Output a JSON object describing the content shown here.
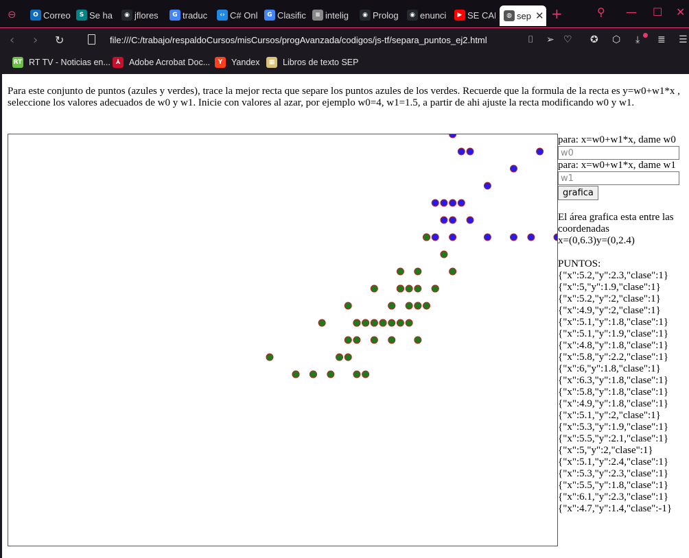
{
  "browser": {
    "tabs": [
      {
        "label": "Correo",
        "icon": "outlook-icon",
        "color": "#0f6cbd",
        "glyph": "O"
      },
      {
        "label": "Se ha",
        "icon": "sharepoint-icon",
        "color": "#038387",
        "glyph": "S"
      },
      {
        "label": "jflores",
        "icon": "github-icon",
        "color": "#24292e",
        "glyph": "◉"
      },
      {
        "label": "traduc",
        "icon": "google-icon",
        "color": "#4285f4",
        "glyph": "G"
      },
      {
        "label": "C# Onl",
        "icon": "dotnet-icon",
        "color": "#1e88e5",
        "glyph": "‹›"
      },
      {
        "label": "Clasific",
        "icon": "google-icon",
        "color": "#4285f4",
        "glyph": "G"
      },
      {
        "label": "intelig",
        "icon": "document-icon",
        "color": "#888888",
        "glyph": "≡"
      },
      {
        "label": "Prolog",
        "icon": "github-icon",
        "color": "#24292e",
        "glyph": "◉"
      },
      {
        "label": "enunci",
        "icon": "github-icon",
        "color": "#24292e",
        "glyph": "◉"
      },
      {
        "label": "SE CAE",
        "icon": "youtube-icon",
        "color": "#ff0000",
        "glyph": "▶"
      },
      {
        "label": "sep",
        "icon": "globe-icon",
        "color": "#555555",
        "glyph": "◍"
      }
    ],
    "url": "file:///C:/trabajo/respaldoCursos/misCursos/progAvanzada/codigos/js-tf/separa_puntos_ej2.html",
    "bookmarks": [
      {
        "label": "RT TV - Noticias en...",
        "icon": "rt-icon",
        "color": "#6cbe45",
        "glyph": "RT"
      },
      {
        "label": "Adobe Acrobat Doc...",
        "icon": "acrobat-icon",
        "color": "#c8102e",
        "glyph": "⅄"
      },
      {
        "label": "Yandex",
        "icon": "yandex-icon",
        "color": "#fc3f1d",
        "glyph": "Y"
      },
      {
        "label": "Libros de texto SEP",
        "icon": "book-icon",
        "color": "#d9c27a",
        "glyph": "▦"
      }
    ],
    "accent": "#e8376a"
  },
  "page": {
    "intro": "Para este conjunto de puntos (azules y verdes), trace la mejor recta que separe los puntos azules de los verdes. Recuerde que la formula de la recta es y=w0+w1*x , seleccione los valores adecuados de w0 y w1. Inicie con valores al azar, por ejemplo w0=4, w1=1.5, a partir de ahi ajuste la recta modificando w0 y w1.",
    "w0_label": "para: x=w0+w1*x, dame w0",
    "w0_placeholder": "w0",
    "w1_label": "para: x=w0+w1*x, dame w1",
    "w1_placeholder": "w1",
    "button": "grafica",
    "area_text": "El área grafica esta entre las coordenadas",
    "coords_text": "x=(0,6.3)y=(0,2.4)",
    "points_header": "PUNTOS:",
    "points_list": [
      "{\"x\":5.2,\"y\":2.3,\"clase\":1}",
      "{\"x\":5,\"y\":1.9,\"clase\":1}",
      "{\"x\":5.2,\"y\":2,\"clase\":1}",
      "{\"x\":4.9,\"y\":2,\"clase\":1}",
      "{\"x\":5.1,\"y\":1.8,\"clase\":1}",
      "{\"x\":5.1,\"y\":1.9,\"clase\":1}",
      "{\"x\":4.8,\"y\":1.8,\"clase\":1}",
      "{\"x\":5.8,\"y\":2.2,\"clase\":1}",
      "{\"x\":6,\"y\":1.8,\"clase\":1}",
      "{\"x\":6.3,\"y\":1.8,\"clase\":1}",
      "{\"x\":5.8,\"y\":1.8,\"clase\":1}",
      "{\"x\":4.9,\"y\":1.8,\"clase\":1}",
      "{\"x\":5.1,\"y\":2,\"clase\":1}",
      "{\"x\":5.3,\"y\":1.9,\"clase\":1}",
      "{\"x\":5.5,\"y\":2.1,\"clase\":1}",
      "{\"x\":5,\"y\":2,\"clase\":1}",
      "{\"x\":5.1,\"y\":2.4,\"clase\":1}",
      "{\"x\":5.3,\"y\":2.3,\"clase\":1}",
      "{\"x\":5.5,\"y\":1.8,\"clase\":1}",
      "{\"x\":6.1,\"y\":2.3,\"clase\":1}",
      "{\"x\":4.7,\"y\":1.4,\"clase\":-1}"
    ],
    "point_colors": {
      "positive_fill": "#2a1ae6",
      "negative_fill": "#1f7a1f",
      "stroke": "#b3261e"
    }
  },
  "chart_data": {
    "type": "scatter",
    "xlim": [
      0,
      6.3
    ],
    "ylim": [
      0,
      2.4
    ],
    "grid": false,
    "series": [
      {
        "name": "1",
        "points": [
          [
            5.2,
            2.3
          ],
          [
            5.0,
            1.9
          ],
          [
            5.2,
            2.0
          ],
          [
            4.9,
            2.0
          ],
          [
            5.1,
            1.8
          ],
          [
            5.1,
            1.9
          ],
          [
            4.8,
            1.8
          ],
          [
            5.8,
            2.2
          ],
          [
            6.0,
            1.8
          ],
          [
            6.3,
            1.8
          ],
          [
            5.8,
            1.8
          ],
          [
            4.9,
            1.8
          ],
          [
            5.1,
            2.0
          ],
          [
            5.3,
            1.9
          ],
          [
            5.5,
            2.1
          ],
          [
            5.0,
            2.0
          ],
          [
            5.1,
            2.4
          ],
          [
            5.3,
            2.3
          ],
          [
            5.5,
            1.8
          ],
          [
            6.1,
            2.3
          ]
        ]
      },
      {
        "name": "-1",
        "points": [
          [
            4.7,
            1.4
          ],
          [
            4.5,
            1.5
          ],
          [
            4.9,
            1.5
          ],
          [
            4.0,
            1.3
          ],
          [
            4.6,
            1.5
          ],
          [
            4.5,
            1.3
          ],
          [
            4.7,
            1.6
          ],
          [
            3.3,
            1.0
          ],
          [
            4.6,
            1.3
          ],
          [
            3.9,
            1.4
          ],
          [
            3.5,
            1.0
          ],
          [
            4.2,
            1.5
          ],
          [
            4.0,
            1.0
          ],
          [
            4.7,
            1.4
          ],
          [
            3.6,
            1.3
          ],
          [
            4.4,
            1.4
          ],
          [
            4.5,
            1.5
          ],
          [
            4.1,
            1.0
          ],
          [
            4.5,
            1.5
          ],
          [
            3.9,
            1.1
          ],
          [
            4.8,
            1.8
          ],
          [
            4.0,
            1.3
          ],
          [
            4.9,
            1.5
          ],
          [
            4.7,
            1.2
          ],
          [
            4.3,
            1.3
          ],
          [
            4.4,
            1.4
          ],
          [
            4.8,
            1.4
          ],
          [
            5.0,
            1.7
          ],
          [
            4.5,
            1.5
          ],
          [
            3.5,
            1.0
          ],
          [
            3.8,
            1.1
          ],
          [
            3.7,
            1.0
          ],
          [
            3.9,
            1.2
          ],
          [
            5.1,
            1.6
          ],
          [
            4.5,
            1.5
          ],
          [
            4.5,
            1.6
          ],
          [
            4.7,
            1.5
          ],
          [
            4.4,
            1.3
          ],
          [
            4.1,
            1.3
          ],
          [
            4.0,
            1.3
          ],
          [
            4.4,
            1.2
          ],
          [
            4.6,
            1.4
          ],
          [
            4.0,
            1.2
          ],
          [
            3.3,
            1.0
          ],
          [
            4.2,
            1.3
          ],
          [
            4.2,
            1.2
          ],
          [
            4.2,
            1.3
          ],
          [
            4.3,
            1.3
          ],
          [
            3.0,
            1.1
          ],
          [
            4.1,
            1.3
          ]
        ]
      }
    ]
  }
}
